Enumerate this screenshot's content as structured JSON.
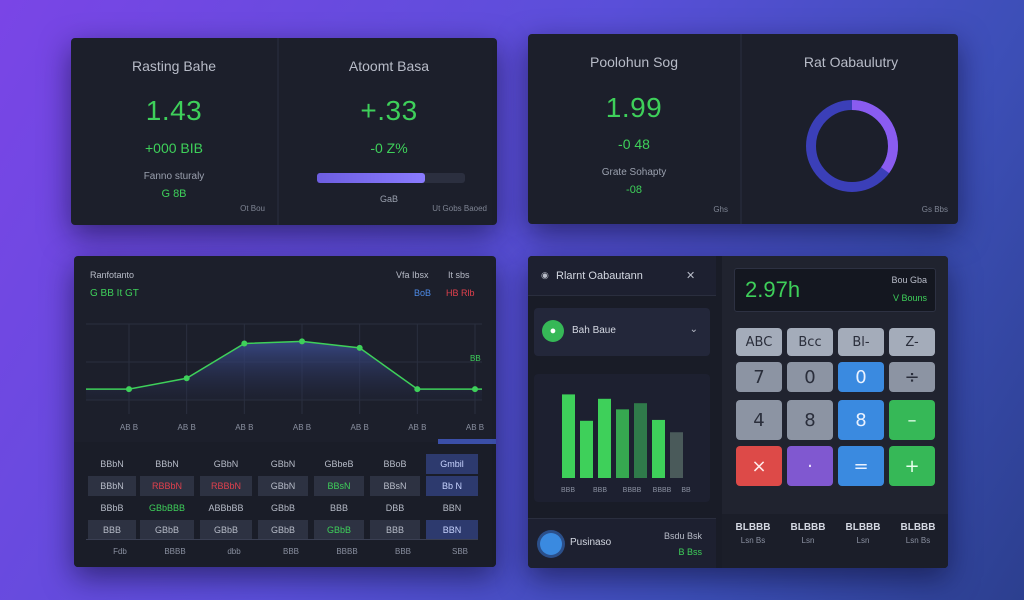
{
  "colors": {
    "green": "#3ed05a",
    "red": "#e0404d",
    "blue": "#4d8ae6",
    "purple": "#8058d0"
  },
  "card1": {
    "left": {
      "title": "Rasting Bahe",
      "value": "1.43",
      "change": "+000 BIB",
      "sub_label": "Fanno sturaly",
      "sub_value": "G 8B",
      "footer": "Ot Bou"
    },
    "right": {
      "title": "Atoomt Basa",
      "value": "+.33",
      "change": "-0 Z%",
      "progress": 0.73,
      "progress_label": "GaB",
      "footer": "Ut Gobs Baoed"
    }
  },
  "card2": {
    "left": {
      "title": "Poolohun Sog",
      "value": "1.99",
      "change": "-0 48",
      "sub_label": "Grate Sohapty",
      "sub_value": "-08",
      "footer": "Ghs"
    },
    "right": {
      "title": "Rat Oabaulutry",
      "donut_fraction": 0.35,
      "footer": "Gs Bbs"
    }
  },
  "card3": {
    "title": "Ranfotanto",
    "subtitle": "G BB It GT",
    "legend_a": "Vfa Ibsx",
    "legend_b": "It sbs",
    "legend_a_sub": "BoB",
    "legend_b_sub": "HB Rlb",
    "end_label": "BB",
    "chart_data": {
      "type": "area",
      "x": [
        "AB B",
        "AB B",
        "AB B",
        "AB B",
        "AB B",
        "AB B",
        "AB B"
      ],
      "values": [
        1,
        2,
        5.2,
        5.4,
        4.8,
        1,
        1
      ],
      "ylim": [
        0,
        7
      ],
      "grid": true
    },
    "table": {
      "rows": [
        [
          "BBbN",
          "BBbN",
          "GBbN",
          "GBbN",
          "GBbeB",
          "BBoB",
          "Gmbil"
        ],
        [
          "BBbN",
          "RBBbN",
          "RBBbN",
          "GBbN",
          "BBsN",
          "BBsN",
          "Bb N"
        ],
        [
          "BBbB",
          "GBbBBB",
          "ABBbBB",
          "GBbB",
          "BBB",
          "DBB",
          "BBN"
        ],
        [
          "BBB",
          "GBbB",
          "GBbB",
          "GBbB",
          "GBbB",
          "BBB",
          "BBN"
        ]
      ],
      "footer": [
        "Fdb",
        "BBBB",
        "dbb",
        "BBB",
        "BBBB",
        "BBB",
        "SBB"
      ]
    }
  },
  "card4": {
    "header": {
      "title": "Rlarnt Oabautann",
      "close_icon": "close-icon"
    },
    "dropdown": {
      "label": "Bah Baue"
    },
    "bar_chart": {
      "chart_data": {
        "type": "bar",
        "categories": [
          "BBB",
          "BBB",
          "BBB",
          "BBB",
          "BBB",
          "BBB",
          "BBB"
        ],
        "values": [
          9.5,
          6.5,
          9,
          7.8,
          8.5,
          6.6,
          5.2
        ],
        "ylim": [
          0,
          10
        ]
      },
      "x_labels": [
        "BBB",
        "BBB",
        "BBBB",
        "BBBB",
        "BB"
      ]
    },
    "footer_item": {
      "label": "Pusinaso",
      "value_top": "Bsdu Bsk",
      "value_bottom": "B Bss"
    },
    "calculator": {
      "display": "2.97h",
      "display_right_top": "Bou Gba",
      "display_right_bottom": "V Bouns",
      "keys": [
        [
          "ABC",
          "Bcc",
          "Bl-",
          "Z-"
        ],
        [
          "7",
          "0",
          "0",
          "÷"
        ],
        [
          "4",
          "8",
          "8",
          "–"
        ],
        [
          "×",
          "·",
          "=",
          "+"
        ]
      ],
      "bottom_labels": [
        {
          "top": "BLBBB",
          "bottom": "Lsn Bs"
        },
        {
          "top": "BLBBB",
          "bottom": "Lsn"
        },
        {
          "top": "BLBBB",
          "bottom": "Lsn"
        },
        {
          "top": "BLBBB",
          "bottom": "Lsn Bs"
        }
      ]
    }
  }
}
